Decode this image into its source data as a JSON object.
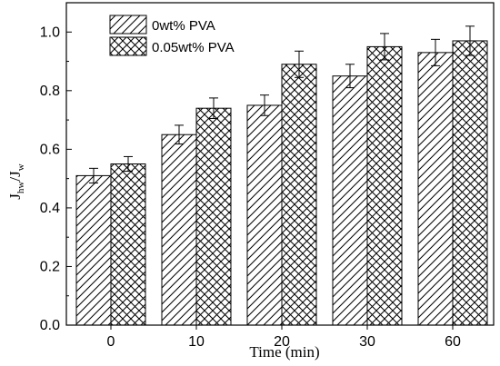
{
  "chart_data": {
    "type": "bar",
    "categories": [
      "0",
      "10",
      "20",
      "30",
      "60"
    ],
    "series": [
      {
        "name": "0wt% PVA",
        "values": [
          0.51,
          0.65,
          0.75,
          0.85,
          0.93
        ],
        "errors": [
          0.025,
          0.032,
          0.035,
          0.04,
          0.045
        ],
        "pattern": "diagonal-hatch"
      },
      {
        "name": "0.05wt% PVA",
        "values": [
          0.55,
          0.74,
          0.89,
          0.95,
          0.97
        ],
        "errors": [
          0.025,
          0.035,
          0.045,
          0.045,
          0.05
        ],
        "pattern": "cross-hatch"
      }
    ],
    "xlabel": "Time (min)",
    "ylabel": {
      "main": "J",
      "sub1": "hw",
      "mid": "/J",
      "sub2": "w"
    },
    "ylim": [
      0.0,
      1.1
    ],
    "yticks": [
      "0.0",
      "0.2",
      "0.4",
      "0.6",
      "0.8",
      "1.0"
    ],
    "grid": false,
    "legend_position": "top-left",
    "colors": {
      "bar_fill": "#ffffff",
      "stroke": "#000000"
    }
  }
}
